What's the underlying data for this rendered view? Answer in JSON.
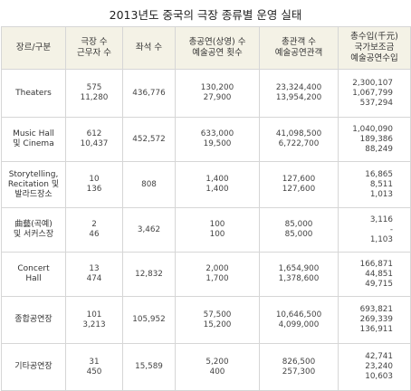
{
  "title": "2013년도 중국의 극장 종류별 운영 실태",
  "headers": [
    [
      "장르/구분"
    ],
    [
      "극장 수",
      "근무자 수"
    ],
    [
      "좌석 수"
    ],
    [
      "총공연(상영) 수",
      "예술공연 횟수"
    ],
    [
      "총관객 수",
      "예술공연관객"
    ],
    [
      "총수입(千元)",
      "국가보조금",
      "예술공연수입"
    ]
  ],
  "rows": [
    {
      "category": [
        "Theaters"
      ],
      "theaters": [
        "575",
        "11,280"
      ],
      "seats": [
        "436,776"
      ],
      "performances": [
        "130,200",
        "27,900"
      ],
      "audience": [
        "23,324,400",
        "13,954,200"
      ],
      "revenue": [
        "2,300,107",
        "1,067,799",
        "537,294"
      ]
    },
    {
      "category": [
        "Music Hall",
        "및 Cinema"
      ],
      "theaters": [
        "612",
        "10,437"
      ],
      "seats": [
        "452,572"
      ],
      "performances": [
        "633,000",
        "19,500"
      ],
      "audience": [
        "41,098,500",
        "6,722,700"
      ],
      "revenue": [
        "1,040,090",
        "189,386",
        "88,249"
      ]
    },
    {
      "category": [
        "Storytelling,",
        "Recitation 및",
        "발라드장소"
      ],
      "theaters": [
        "10",
        "136"
      ],
      "seats": [
        "808"
      ],
      "performances": [
        "1,400",
        "1,400"
      ],
      "audience": [
        "127,600",
        "127,600"
      ],
      "revenue": [
        "16,865",
        "8,511",
        "1,013"
      ]
    },
    {
      "category": [
        "曲藝(곡예)",
        "및 서커스장"
      ],
      "theaters": [
        "2",
        "46"
      ],
      "seats": [
        "3,462"
      ],
      "performances": [
        "100",
        "100"
      ],
      "audience": [
        "85,000",
        "85,000"
      ],
      "revenue": [
        "3,116",
        "-",
        "1,103"
      ]
    },
    {
      "category": [
        "Concert",
        "Hall"
      ],
      "theaters": [
        "13",
        "474"
      ],
      "seats": [
        "12,832"
      ],
      "performances": [
        "2,000",
        "1,700"
      ],
      "audience": [
        "1,654,900",
        "1,378,600"
      ],
      "revenue": [
        "166,871",
        "44,851",
        "49,715"
      ]
    },
    {
      "category": [
        "종합공연장"
      ],
      "theaters": [
        "101",
        "3,213"
      ],
      "seats": [
        "105,952"
      ],
      "performances": [
        "57,500",
        "15,200"
      ],
      "audience": [
        "10,646,500",
        "4,099,000"
      ],
      "revenue": [
        "693,821",
        "269,339",
        "136,911"
      ]
    },
    {
      "category": [
        "기타공연장"
      ],
      "theaters": [
        "31",
        "450"
      ],
      "seats": [
        "15,589"
      ],
      "performances": [
        "5,200",
        "400"
      ],
      "audience": [
        "826,500",
        "257,300"
      ],
      "revenue": [
        "42,741",
        "23,240",
        "10,603"
      ]
    }
  ],
  "colors": {
    "header_bg": "#f4f2e6",
    "border": "#d6d6d6"
  }
}
